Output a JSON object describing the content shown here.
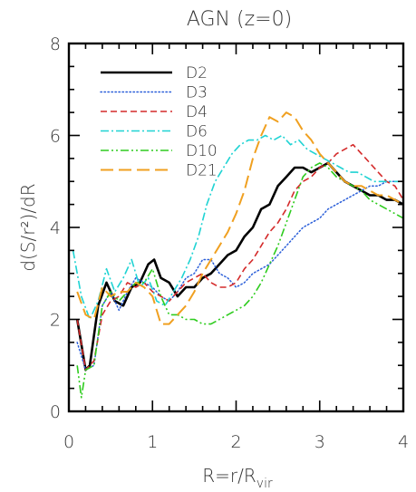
{
  "chart_data": {
    "type": "line",
    "title": "AGN (z=0)",
    "xlabel": "R=r/R",
    "xlabel_sub": "vir",
    "ylabel": "d(S/r²)/dR",
    "xlim": [
      0,
      4
    ],
    "ylim": [
      0,
      8
    ],
    "xticks": [
      "0",
      "1",
      "2",
      "3",
      "4"
    ],
    "yticks": [
      "0",
      "2",
      "4",
      "6",
      "8"
    ],
    "grid": false,
    "legend_position": "top-left",
    "series": [
      {
        "name": "D2",
        "color": "#000000",
        "dash": "solid",
        "width": 2.6,
        "x": [
          0.1,
          0.2,
          0.25,
          0.35,
          0.45,
          0.55,
          0.65,
          0.75,
          0.85,
          0.95,
          1.02,
          1.1,
          1.2,
          1.3,
          1.4,
          1.5,
          1.6,
          1.7,
          1.8,
          1.9,
          2.0,
          2.1,
          2.2,
          2.3,
          2.4,
          2.5,
          2.6,
          2.7,
          2.8,
          2.9,
          3.0,
          3.1,
          3.2,
          3.3,
          3.4,
          3.5,
          3.6,
          3.7,
          3.8,
          3.9,
          4.0
        ],
        "y": [
          2.0,
          0.9,
          1.0,
          2.3,
          2.8,
          2.4,
          2.3,
          2.7,
          2.8,
          3.2,
          3.3,
          2.9,
          2.8,
          2.5,
          2.7,
          2.7,
          2.9,
          3.0,
          3.2,
          3.4,
          3.5,
          3.8,
          4.0,
          4.4,
          4.5,
          4.9,
          5.1,
          5.3,
          5.3,
          5.2,
          5.3,
          5.4,
          5.2,
          5.0,
          4.9,
          4.8,
          4.7,
          4.7,
          4.6,
          4.6,
          4.5
        ]
      },
      {
        "name": "D3",
        "color": "#2b5fd9",
        "dash": "dotted",
        "width": 1.5,
        "x": [
          0.1,
          0.2,
          0.3,
          0.4,
          0.5,
          0.6,
          0.7,
          0.8,
          0.9,
          1.0,
          1.1,
          1.2,
          1.3,
          1.4,
          1.5,
          1.6,
          1.7,
          1.8,
          1.9,
          2.0,
          2.1,
          2.2,
          2.3,
          2.4,
          2.5,
          2.6,
          2.7,
          2.8,
          2.9,
          3.0,
          3.1,
          3.2,
          3.3,
          3.4,
          3.5,
          3.6,
          3.7,
          3.8,
          3.9,
          4.0
        ],
        "y": [
          1.5,
          0.9,
          1.0,
          2.3,
          2.6,
          2.2,
          2.6,
          2.9,
          2.8,
          2.7,
          2.5,
          2.4,
          2.6,
          2.9,
          3.0,
          3.3,
          3.3,
          3.0,
          2.9,
          2.7,
          2.8,
          3.0,
          3.1,
          3.2,
          3.4,
          3.6,
          3.8,
          4.0,
          4.1,
          4.2,
          4.4,
          4.5,
          4.6,
          4.7,
          4.8,
          4.9,
          4.9,
          5.0,
          5.0,
          5.0
        ]
      },
      {
        "name": "D4",
        "color": "#d42a2a",
        "dash": "dashed",
        "width": 1.6,
        "x": [
          0.1,
          0.2,
          0.3,
          0.4,
          0.5,
          0.6,
          0.7,
          0.8,
          0.9,
          1.0,
          1.1,
          1.2,
          1.3,
          1.4,
          1.5,
          1.6,
          1.7,
          1.8,
          1.9,
          2.0,
          2.1,
          2.2,
          2.3,
          2.4,
          2.5,
          2.6,
          2.7,
          2.8,
          2.9,
          3.0,
          3.1,
          3.2,
          3.3,
          3.4,
          3.5,
          3.6,
          3.7,
          3.8,
          3.9,
          4.0
        ],
        "y": [
          2.0,
          0.9,
          1.1,
          2.1,
          2.4,
          2.5,
          2.8,
          2.7,
          2.8,
          2.6,
          2.5,
          2.4,
          2.6,
          2.8,
          2.9,
          3.0,
          2.8,
          2.7,
          2.7,
          2.8,
          3.1,
          3.3,
          3.6,
          3.9,
          4.1,
          4.4,
          4.8,
          5.0,
          5.1,
          5.3,
          5.4,
          5.6,
          5.7,
          5.8,
          5.6,
          5.4,
          5.2,
          5.0,
          4.9,
          4.6
        ]
      },
      {
        "name": "D6",
        "color": "#1fd3d3",
        "dash": "dashdot",
        "width": 1.6,
        "x": [
          0.05,
          0.15,
          0.25,
          0.35,
          0.45,
          0.55,
          0.65,
          0.75,
          0.85,
          0.95,
          1.05,
          1.15,
          1.25,
          1.35,
          1.45,
          1.55,
          1.65,
          1.75,
          1.85,
          1.95,
          2.05,
          2.15,
          2.25,
          2.35,
          2.45,
          2.55,
          2.65,
          2.75,
          2.85,
          2.95,
          3.05,
          3.15,
          3.25,
          3.35,
          3.45,
          3.55,
          3.65,
          3.75,
          3.85,
          3.95
        ],
        "y": [
          3.5,
          2.5,
          2.0,
          2.4,
          3.1,
          2.6,
          2.9,
          3.3,
          2.7,
          2.9,
          2.4,
          2.3,
          2.6,
          2.9,
          3.3,
          3.8,
          4.5,
          5.0,
          5.3,
          5.6,
          5.8,
          5.9,
          5.9,
          6.0,
          5.9,
          6.0,
          5.8,
          5.9,
          5.7,
          5.6,
          5.5,
          5.4,
          5.3,
          5.2,
          5.2,
          5.1,
          5.0,
          5.0,
          5.0,
          5.0
        ]
      },
      {
        "name": "D10",
        "color": "#2ecc1e",
        "dash": "dashdotdot",
        "width": 1.6,
        "x": [
          0.1,
          0.15,
          0.2,
          0.3,
          0.4,
          0.5,
          0.6,
          0.7,
          0.8,
          0.9,
          1.0,
          1.1,
          1.2,
          1.3,
          1.4,
          1.5,
          1.6,
          1.7,
          1.8,
          1.9,
          2.0,
          2.1,
          2.2,
          2.3,
          2.4,
          2.5,
          2.6,
          2.7,
          2.8,
          2.9,
          3.0,
          3.1,
          3.2,
          3.3,
          3.4,
          3.5,
          3.6,
          3.7,
          3.8,
          3.9,
          4.0
        ],
        "y": [
          1.0,
          0.3,
          0.9,
          1.0,
          2.3,
          2.6,
          2.4,
          2.6,
          2.8,
          2.8,
          3.1,
          2.5,
          2.1,
          2.1,
          2.0,
          2.0,
          1.9,
          1.9,
          2.0,
          2.1,
          2.2,
          2.3,
          2.5,
          2.8,
          3.2,
          3.6,
          4.1,
          4.6,
          5.1,
          5.3,
          5.4,
          5.3,
          5.1,
          5.0,
          4.9,
          4.8,
          4.6,
          4.5,
          4.4,
          4.3,
          4.2
        ]
      },
      {
        "name": "D21",
        "color": "#f0a020",
        "dash": "longdash",
        "width": 2.0,
        "x": [
          0.1,
          0.2,
          0.3,
          0.4,
          0.5,
          0.6,
          0.7,
          0.8,
          0.9,
          1.0,
          1.1,
          1.2,
          1.3,
          1.4,
          1.5,
          1.6,
          1.7,
          1.8,
          1.9,
          2.0,
          2.1,
          2.2,
          2.3,
          2.4,
          2.5,
          2.6,
          2.7,
          2.8,
          2.9,
          3.0,
          3.1,
          3.2,
          3.3,
          3.4,
          3.5,
          3.6,
          3.7,
          3.8,
          3.9,
          4.0
        ],
        "y": [
          2.6,
          2.1,
          2.0,
          2.7,
          2.5,
          2.6,
          2.6,
          2.8,
          2.7,
          2.5,
          1.9,
          1.9,
          2.1,
          2.3,
          2.6,
          3.0,
          3.3,
          3.6,
          3.9,
          4.3,
          4.8,
          5.5,
          6.0,
          6.4,
          6.3,
          6.5,
          6.4,
          6.1,
          5.9,
          5.6,
          5.4,
          5.2,
          5.0,
          4.9,
          4.9,
          4.8,
          4.7,
          4.7,
          4.6,
          4.5
        ]
      }
    ]
  }
}
